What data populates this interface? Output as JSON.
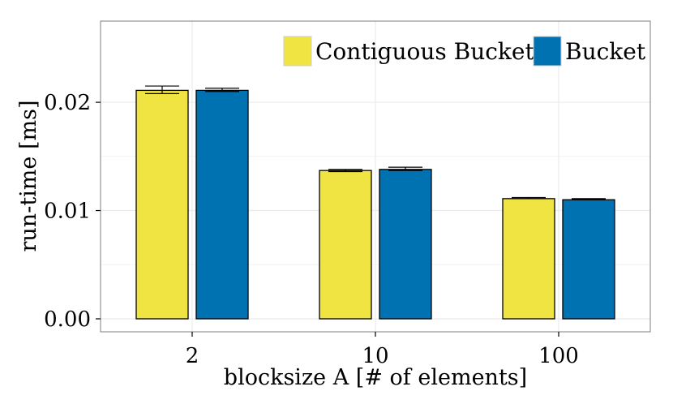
{
  "chart_data": {
    "type": "bar",
    "title": "",
    "xlabel": "blocksize A [# of elements]",
    "ylabel": "run-time [ms]",
    "categories": [
      "2",
      "10",
      "100"
    ],
    "ylim": [
      -0.0012,
      0.0275
    ],
    "yticks": [
      "0.00",
      "0.01",
      "0.02"
    ],
    "ytick_values": [
      0.0,
      0.01,
      0.02
    ],
    "grid": true,
    "legend_position": "top-right",
    "series": [
      {
        "name": "Contiguous Bucket",
        "color": "#F0E442",
        "values": [
          0.0211,
          0.0137,
          0.0111
        ],
        "err_low": [
          0.0208,
          0.0136,
          0.0111
        ],
        "err_high": [
          0.0215,
          0.0138,
          0.0112
        ]
      },
      {
        "name": "Bucket",
        "color": "#0072B2",
        "values": [
          0.0211,
          0.0138,
          0.011
        ],
        "err_low": [
          0.021,
          0.0137,
          0.011
        ],
        "err_high": [
          0.0213,
          0.014,
          0.0111
        ]
      }
    ]
  }
}
